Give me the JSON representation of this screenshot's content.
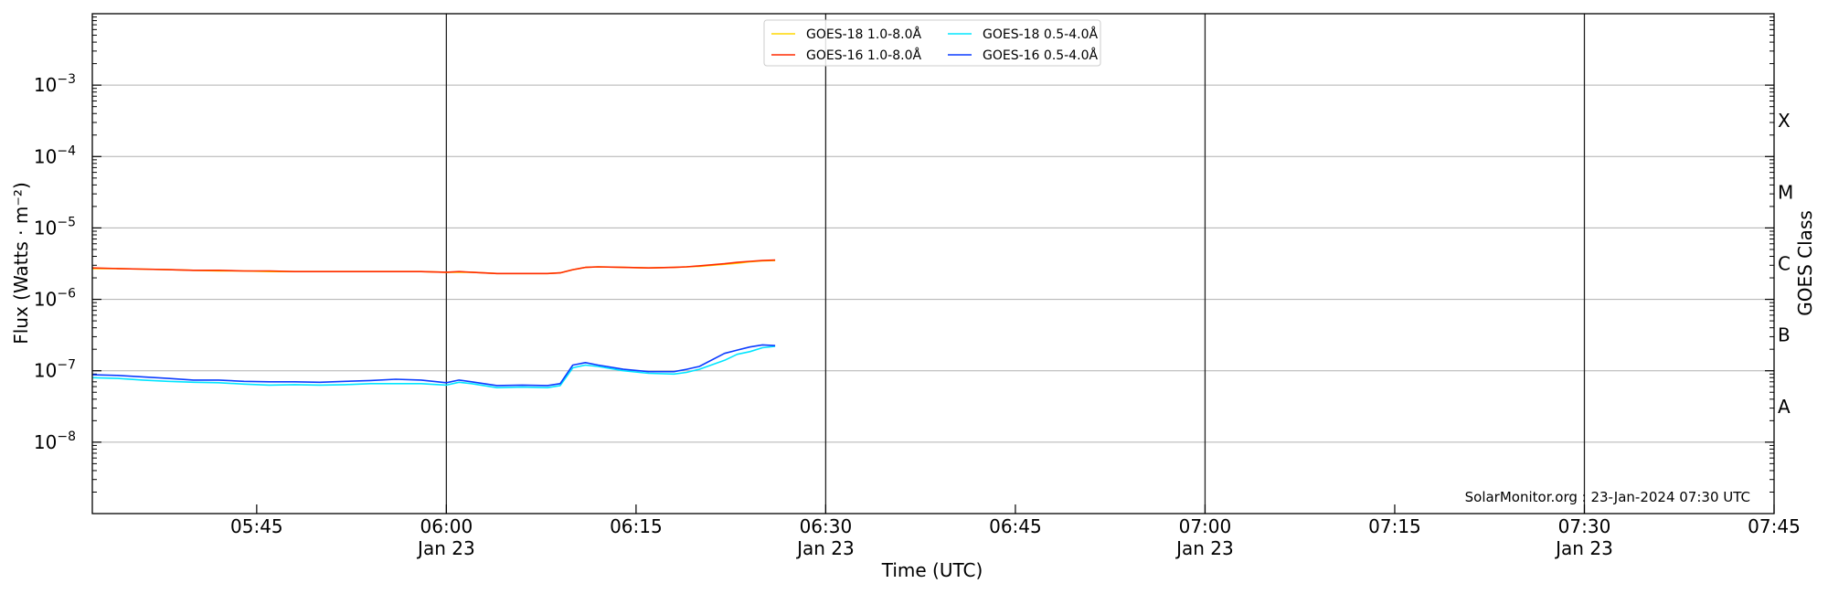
{
  "chart_data": {
    "type": "line",
    "xlabel": "Time (UTC)",
    "ylabel": "Flux (Watts · m⁻²)",
    "y2label": "GOES Class",
    "credit": "SolarMonitor.org : 23-Jan-2024 07:30 UTC",
    "y_scale": "log",
    "ylim": [
      "1e-9",
      "1e-2"
    ],
    "xlim": [
      "05:32",
      "07:45"
    ],
    "grid": "horizontal at each decade",
    "legend_position": "top-center",
    "x_ticks": [
      {
        "time": "05:45",
        "label": "05:45",
        "date": ""
      },
      {
        "time": "06:00",
        "label": "06:00",
        "date": "Jan 23"
      },
      {
        "time": "06:15",
        "label": "06:15",
        "date": ""
      },
      {
        "time": "06:30",
        "label": "06:30",
        "date": "Jan 23"
      },
      {
        "time": "06:45",
        "label": "06:45",
        "date": ""
      },
      {
        "time": "07:00",
        "label": "07:00",
        "date": "Jan 23"
      },
      {
        "time": "07:15",
        "label": "07:15",
        "date": ""
      },
      {
        "time": "07:30",
        "label": "07:30",
        "date": "Jan 23"
      },
      {
        "time": "07:45",
        "label": "07:45",
        "date": ""
      }
    ],
    "day_lines": [
      "06:00",
      "06:30",
      "07:00",
      "07:30"
    ],
    "y_ticks": [
      {
        "exp": -8,
        "label": "10",
        "sup": "−8"
      },
      {
        "exp": -7,
        "label": "10",
        "sup": "−7"
      },
      {
        "exp": -6,
        "label": "10",
        "sup": "−6"
      },
      {
        "exp": -5,
        "label": "10",
        "sup": "−5"
      },
      {
        "exp": -4,
        "label": "10",
        "sup": "−4"
      },
      {
        "exp": -3,
        "label": "10",
        "sup": "−3"
      }
    ],
    "goes_classes": [
      {
        "label": "A",
        "exp": -7.5
      },
      {
        "label": "B",
        "exp": -6.5
      },
      {
        "label": "C",
        "exp": -5.5
      },
      {
        "label": "M",
        "exp": -4.5
      },
      {
        "label": "X",
        "exp": -3.5
      }
    ],
    "x": [
      "05:32",
      "05:34",
      "05:36",
      "05:38",
      "05:40",
      "05:42",
      "05:44",
      "05:46",
      "05:48",
      "05:50",
      "05:52",
      "05:54",
      "05:56",
      "05:58",
      "06:00",
      "06:01",
      "06:02",
      "06:04",
      "06:06",
      "06:08",
      "06:09",
      "06:10",
      "06:11",
      "06:12",
      "06:14",
      "06:16",
      "06:18",
      "06:19",
      "06:20",
      "06:22",
      "06:23",
      "06:24",
      "06:25",
      "06:26"
    ],
    "series": [
      {
        "name": "GOES-18 1.0-8.0Å",
        "color": "#ffd700",
        "legend_order": 0,
        "values": [
          2.7e-06,
          2.7e-06,
          2.65e-06,
          2.6e-06,
          2.55e-06,
          2.5e-06,
          2.5e-06,
          2.45e-06,
          2.45e-06,
          2.45e-06,
          2.45e-06,
          2.45e-06,
          2.45e-06,
          2.45e-06,
          2.4e-06,
          2.4e-06,
          2.4e-06,
          2.3e-06,
          2.3e-06,
          2.3e-06,
          2.35e-06,
          2.6e-06,
          2.8e-06,
          2.85e-06,
          2.8e-06,
          2.75e-06,
          2.8e-06,
          2.85e-06,
          2.9e-06,
          3.1e-06,
          3.2e-06,
          3.35e-06,
          3.45e-06,
          3.5e-06
        ]
      },
      {
        "name": "GOES-16 1.0-8.0Å",
        "color": "#ff2a00",
        "legend_order": 1,
        "values": [
          2.75e-06,
          2.7e-06,
          2.65e-06,
          2.6e-06,
          2.55e-06,
          2.55e-06,
          2.5e-06,
          2.5e-06,
          2.45e-06,
          2.45e-06,
          2.45e-06,
          2.45e-06,
          2.45e-06,
          2.45e-06,
          2.4e-06,
          2.45e-06,
          2.4e-06,
          2.3e-06,
          2.3e-06,
          2.3e-06,
          2.35e-06,
          2.6e-06,
          2.8e-06,
          2.85e-06,
          2.8e-06,
          2.75e-06,
          2.8e-06,
          2.85e-06,
          2.95e-06,
          3.15e-06,
          3.3e-06,
          3.4e-06,
          3.5e-06,
          3.55e-06
        ]
      },
      {
        "name": "GOES-18 0.5-4.0Å",
        "color": "#00e5ff",
        "legend_order": 2,
        "values": [
          8e-08,
          7.8e-08,
          7.4e-08,
          7.1e-08,
          6.9e-08,
          6.8e-08,
          6.5e-08,
          6.3e-08,
          6.4e-08,
          6.3e-08,
          6.4e-08,
          6.6e-08,
          6.6e-08,
          6.6e-08,
          6.3e-08,
          6.9e-08,
          6.6e-08,
          5.8e-08,
          5.9e-08,
          5.8e-08,
          6.2e-08,
          1.1e-07,
          1.2e-07,
          1.15e-07,
          1e-07,
          9.2e-08,
          9e-08,
          9.5e-08,
          1.05e-07,
          1.4e-07,
          1.7e-07,
          1.85e-07,
          2.1e-07,
          2.2e-07
        ]
      },
      {
        "name": "GOES-16 0.5-4.0Å",
        "color": "#0a3cff",
        "legend_order": 3,
        "values": [
          8.8e-08,
          8.6e-08,
          8.2e-08,
          7.8e-08,
          7.4e-08,
          7.4e-08,
          7.1e-08,
          7e-08,
          7e-08,
          6.9e-08,
          7.1e-08,
          7.3e-08,
          7.6e-08,
          7.4e-08,
          6.8e-08,
          7.4e-08,
          7e-08,
          6.2e-08,
          6.3e-08,
          6.2e-08,
          6.6e-08,
          1.2e-07,
          1.3e-07,
          1.2e-07,
          1.05e-07,
          9.7e-08,
          9.7e-08,
          1.05e-07,
          1.15e-07,
          1.75e-07,
          1.95e-07,
          2.15e-07,
          2.3e-07,
          2.25e-07
        ]
      }
    ]
  }
}
